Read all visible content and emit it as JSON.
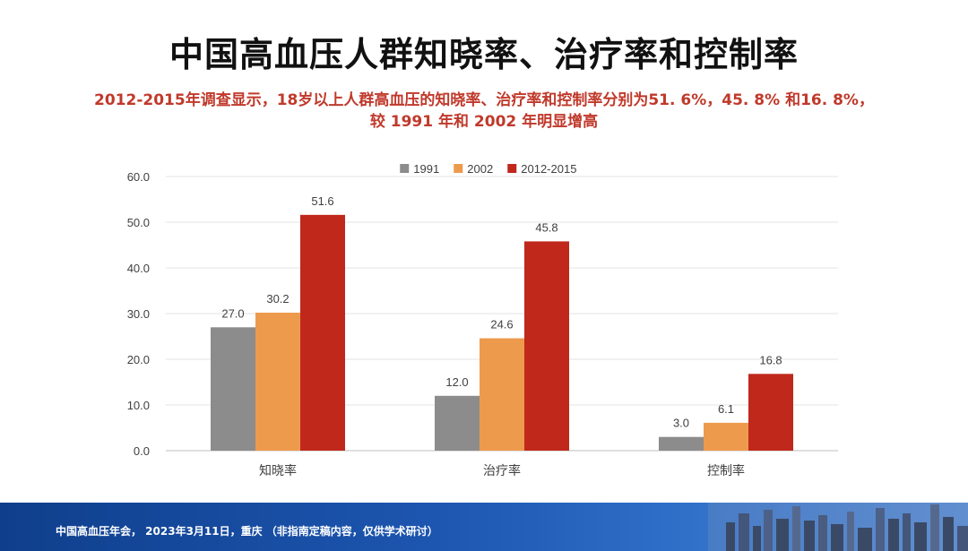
{
  "slide": {
    "title": "中国高血压人群知晓率、治疗率和控制率",
    "subtitle_line1": "2012-2015年调查显示，18岁以上人群高血压的知晓率、治疗率和控制率分别为51. 6%，45. 8% 和16. 8%，",
    "subtitle_line2": "较 1991 年和 2002 年明显增高"
  },
  "chart_data": {
    "type": "bar",
    "categories": [
      "知晓率",
      "治疗率",
      "控制率"
    ],
    "series": [
      {
        "name": "1991",
        "values": [
          27.0,
          12.0,
          3.0
        ],
        "color": "#8c8c8c"
      },
      {
        "name": "2002",
        "values": [
          30.2,
          24.6,
          6.1
        ],
        "color": "#ee9a4d"
      },
      {
        "name": "2012-2015",
        "values": [
          51.6,
          45.8,
          16.8
        ],
        "color": "#c0281c"
      }
    ],
    "ylim": [
      0,
      60
    ],
    "yticks": [
      "0.0",
      "10.0",
      "20.0",
      "30.0",
      "40.0",
      "50.0",
      "60.0"
    ],
    "grid": true,
    "legend": "top-center"
  },
  "footer": {
    "text": "中国高血压年会， 2023年3月11日，重庆 （非指南定稿内容，仅供学术研讨）"
  }
}
